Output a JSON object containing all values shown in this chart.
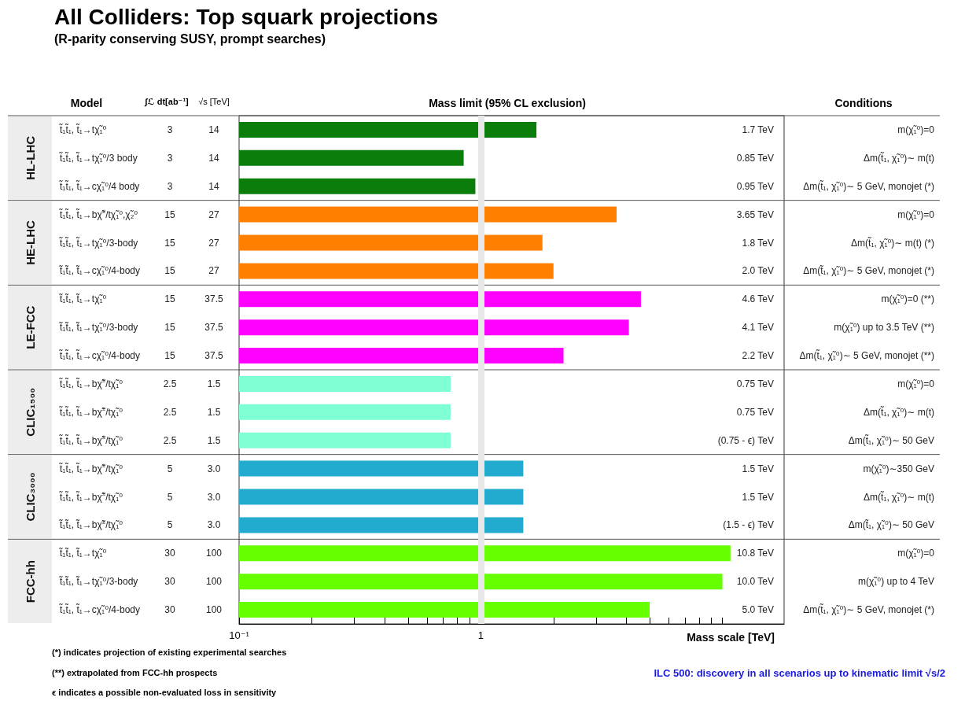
{
  "chart_data": {
    "type": "bar",
    "orientation": "horizontal",
    "log": "x",
    "title": "All Colliders: Top squark projections",
    "subtitle": "(R-parity conserving SUSY, prompt searches)",
    "xlabel": "Mass scale [TeV]",
    "categories": [
      "t̃₁t̃₁, t̃₁→tχ̃₁⁰",
      "t̃₁t̃₁, t̃₁→tχ̃₁⁰/3 body",
      "t̃₁t̃₁, t̃₁→cχ̃₁⁰/4 body",
      "t̃₁t̃₁, t̃₁→bχ̃$^{±}$/tχ̃₁⁰,χ̃₂⁰",
      "t̃₁t̃₁, t̃₁→tχ̃₁⁰/3-body",
      "t̃₁t̃₁, t̃₁→cχ̃₁⁰/4-body",
      "t̃₁t̃₁, t̃₁→tχ̃₁⁰",
      "t̃₁t̃₁, t̃₁→tχ̃₁⁰/3-body",
      "t̃₁t̃₁, t̃₁→cχ̃₁⁰/4-body",
      "t̃₁t̃₁, t̃₁→bχ̃$^{±}$/tχ̃₁⁰",
      "t̃₁t̃₁, t̃₁→bχ̃$^{±}$/tχ̃₁⁰",
      "t̃₁t̃₁, t̃₁→bχ̃$^{±}$/tχ̃₁⁰",
      "t̃₁t̃₁, t̃₁→bχ̃$^{±}$/tχ̃₁⁰",
      "t̃₁t̃₁, t̃₁→bχ̃$^{±}$/tχ̃₁⁰",
      "t̃₁t̃₁, t̃₁→bχ̃$^{±}$/tχ̃₁⁰",
      "t̃₁t̃₁, t̃₁→tχ̃₁⁰",
      "t̃₁t̃₁, t̃₁→tχ̃₁⁰/3-body",
      "t̃₁t̃₁, t̃₁→cχ̃₁⁰/4-body"
    ],
    "values": [
      1.7,
      0.85,
      0.95,
      3.65,
      1.8,
      2.0,
      4.6,
      4.1,
      2.2,
      0.75,
      0.75,
      0.75,
      1.5,
      1.5,
      1.5,
      10.8,
      10.0,
      5.0
    ],
    "colors": [
      "#0b7d0b",
      "#0b7d0b",
      "#0b7d0b",
      "#ff8000",
      "#ff8000",
      "#ff8000",
      "#ff00ff",
      "#ff00ff",
      "#ff00ff",
      "#7fffd4",
      "#7fffd4",
      "#7fffd4",
      "#22aacf",
      "#22aacf",
      "#22aacf",
      "#66ff00",
      "#66ff00",
      "#66ff00"
    ],
    "value_labels": [
      "1.7 TeV",
      "0.85 TeV",
      "0.95 TeV",
      "3.65 TeV",
      "1.8 TeV",
      "2.0 TeV",
      "4.6 TeV",
      "4.1 TeV",
      "2.2 TeV",
      "0.75 TeV",
      "0.75 TeV",
      "(0.75 - ϵ) TeV",
      "1.5 TeV",
      "1.5 TeV",
      "(1.5 - ϵ) TeV",
      "10.8 TeV",
      "10.0 TeV",
      "5.0 TeV"
    ],
    "xlim": [
      0.1,
      18
    ],
    "xticks": [
      {
        "value": 0.1,
        "label": "10⁻¹"
      },
      {
        "value": 0.2,
        "label": null
      },
      {
        "value": 0.3,
        "label": null
      },
      {
        "value": 0.4,
        "label": null
      },
      {
        "value": 0.5,
        "label": null
      },
      {
        "value": 0.6,
        "label": null
      },
      {
        "value": 0.7,
        "label": null
      },
      {
        "value": 0.8,
        "label": null
      },
      {
        "value": 0.9,
        "label": null
      },
      1,
      {
        "value": 2,
        "label": null
      },
      {
        "value": 3,
        "label": null
      },
      {
        "value": 4,
        "label": null
      },
      {
        "value": 5,
        "label": null
      },
      {
        "value": 6,
        "label": null
      },
      {
        "value": 7,
        "label": null
      },
      {
        "value": 8,
        "label": null
      },
      {
        "value": 9,
        "label": null
      },
      {
        "value": 10,
        "label": null
      }
    ],
    "ref_lines": [
      {
        "axis": "x",
        "value": 1,
        "color": "#e8e8e8"
      }
    ],
    "annotations": [
      "Model",
      "∫ℒ dt[ab⁻¹]",
      "√s [TeV]",
      "Mass limit (95% CL exclusion)",
      "Conditions",
      "HL-LHC",
      "HE-LHC",
      "LE-FCC",
      "CLIC₁₅₀₀",
      "CLIC₃₀₀₀",
      "FCC-hh",
      "3",
      "3",
      "3",
      "15",
      "15",
      "15",
      "15",
      "15",
      "15",
      "2.5",
      "2.5",
      "2.5",
      "5",
      "5",
      "5",
      "30",
      "30",
      "30",
      "14",
      "14",
      "14",
      "27",
      "27",
      "27",
      "37.5",
      "37.5",
      "37.5",
      "1.5",
      "1.5",
      "1.5",
      "3.0",
      "3.0",
      "3.0",
      "100",
      "100",
      "100",
      "m(χ̃₁⁰)=0",
      "Δm(t̃₁, χ̃₁⁰)∼ m(t)",
      "Δm(t̃₁, χ̃₁⁰)∼ 5 GeV, monojet (*)",
      "m(χ̃₁⁰)=0",
      "Δm(t̃₁, χ̃₁⁰)∼ m(t) (*)",
      "Δm(t̃₁, χ̃₁⁰)∼ 5 GeV, monojet (*)",
      "m(χ̃₁⁰)=0 (**)",
      "m(χ̃₁⁰) up to 3.5 TeV (**)",
      "Δm(t̃₁, χ̃₁⁰)∼ 5 GeV, monojet (**)",
      "m(χ̃₁⁰)=0",
      "Δm(t̃₁, χ̃₁⁰)∼ m(t)",
      "Δm(t̃₁, χ̃₁⁰)∼ 50 GeV",
      "m(χ̃₁⁰)∼350 GeV",
      "Δm(t̃₁, χ̃₁⁰)∼ m(t)",
      "Δm(t̃₁, χ̃₁⁰)∼ 50 GeV",
      "m(χ̃₁⁰)=0",
      "m(χ̃₁⁰) up to 4 TeV",
      "Δm(t̃₁, χ̃₁⁰)∼ 5 GeV, monojet (*)",
      "(*) indicates projection of existing experimental searches",
      "(**) extrapolated from FCC-hh prospects",
      "ϵ indicates a possible non-evaluated loss in sensitivity",
      "ILC 500: discovery in all scenarios up to kinematic limit √s/2"
    ]
  }
}
